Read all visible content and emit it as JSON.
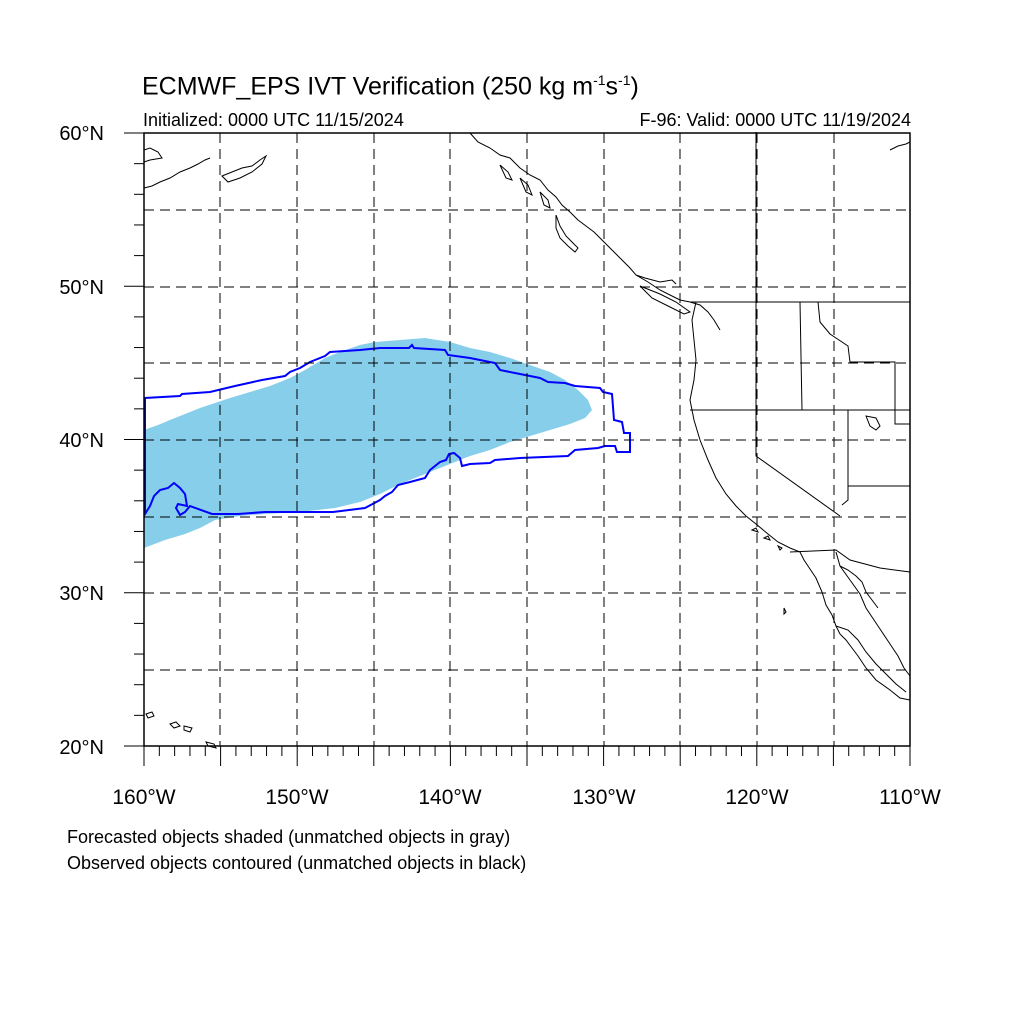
{
  "map": {
    "title": "ECMWF_EPS IVT Verification (250 kg m",
    "title_exp1": "-1",
    "title_mid": "s",
    "title_exp2": "-1",
    "title_end": ")",
    "initialized": "Initialized: 0000 UTC 11/15/2024",
    "valid": "F-96: Valid: 0000 UTC 11/19/2024",
    "lat_labels": [
      "60°N",
      "50°N",
      "40°N",
      "30°N",
      "20°N"
    ],
    "lon_labels": [
      "160°W",
      "150°W",
      "140°W",
      "130°W",
      "120°W",
      "110°W"
    ],
    "extent": {
      "lon_min": -160,
      "lon_max": -110,
      "lat_min": 20,
      "lat_max": 60
    },
    "forecast_fill_color": "#87ceeb",
    "observed_contour_color": "#0000ff",
    "note_forecast": "Forecasted objects shaded (unmatched objects in gray)",
    "note_observed": "Observed objects contoured (unmatched objects in black)"
  }
}
